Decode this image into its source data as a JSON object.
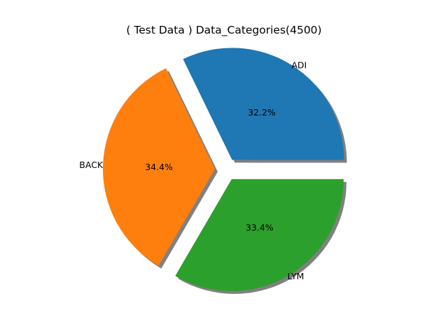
{
  "chart_data": {
    "type": "pie",
    "title": "( Test Data ) Data_Categories(4500)",
    "slices": [
      {
        "label": "ADI",
        "value": 32.2,
        "pct_label": "32.2%",
        "color": "#1f77b4",
        "exploded": true
      },
      {
        "label": "BACK",
        "value": 34.4,
        "pct_label": "34.4%",
        "color": "#ff7f0e",
        "exploded": true
      },
      {
        "label": "LYM",
        "value": 33.4,
        "pct_label": "33.4%",
        "color": "#2ca02c",
        "exploded": true
      }
    ],
    "start_angle_deg": 0,
    "direction": "counterclockwise",
    "shadow": true,
    "shadow_color": "#808080"
  }
}
